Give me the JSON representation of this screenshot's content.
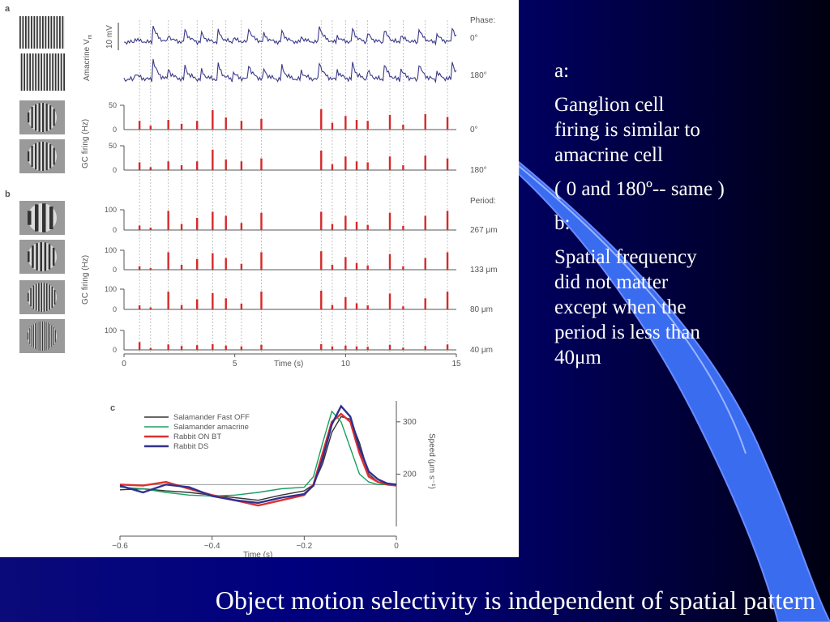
{
  "slide": {
    "title": "Object motion selectivity is independent of spatial pattern",
    "notes": [
      " a:",
      " Ganglion cell\nfiring is similar to\namacrine cell",
      "( 0 and 180º-- same )",
      " b:",
      "Spatial frequency\ndid not matter\nexcept when the\nperiod is less than\n40μm"
    ],
    "colors": {
      "background": "#00007e",
      "accent_wave": "#3a6cf0",
      "text": "#ffffff"
    }
  },
  "figure": {
    "panel_a_label": "a",
    "panel_b_label": "b",
    "panel_c_label": "c",
    "amacrine_ylabel": "Amacrine V",
    "amacrine_ylabel_sub": "m",
    "scale_bar": "10 mV",
    "gc_ylabel": "GC firing (Hz)",
    "phase_header": "Phase:",
    "period_header": "Period:",
    "time_label": "Time (s)",
    "time_ticks": [
      "0",
      "5",
      "10",
      "15"
    ],
    "panel_c_xlabel": "Time (s)",
    "panel_c_ylabel": "Speed (μm s⁻¹)",
    "row_icons": [
      "grating-0deg-icon",
      "grating-180deg-icon",
      "aperture-grating-icon",
      "aperture-grating-icon",
      "aperture-grating-267-icon",
      "aperture-grating-133-icon",
      "aperture-grating-80-icon",
      "aperture-grating-40-icon"
    ]
  },
  "chart_data": [
    {
      "type": "line",
      "panel": "a",
      "ylabel": "Amacrine V m",
      "scale_bar": "10 mV",
      "x": [
        0.5,
        1.3,
        2.0,
        2.7,
        3.5,
        4.2,
        4.9,
        5.6,
        6.3,
        7.1,
        8.0,
        8.8,
        9.6,
        10.3,
        11.0,
        11.7,
        12.5,
        13.3,
        14.1,
        14.8
      ],
      "xlabel": "Time (s)",
      "xlim": [
        0,
        15
      ],
      "series": [
        {
          "name": "0°",
          "values": [
            0.2,
            1.0,
            0.4,
            0.9,
            0.5,
            0.8,
            0.3,
            0.9,
            0.5,
            0.7,
            0.3,
            1.0,
            0.4,
            0.8,
            0.5,
            0.9,
            0.4,
            0.8,
            0.5,
            0.9
          ]
        },
        {
          "name": "180°",
          "values": [
            0.3,
            1.0,
            0.5,
            0.8,
            0.4,
            0.9,
            0.4,
            0.8,
            0.5,
            0.7,
            0.4,
            0.9,
            0.5,
            0.8,
            0.4,
            0.9,
            0.5,
            0.8,
            0.4,
            0.9
          ]
        }
      ]
    },
    {
      "type": "bar",
      "panel": "a",
      "ylabel": "GC firing (Hz)",
      "header": "Phase:",
      "xlabel": "Time (s)",
      "xlim": [
        0,
        15
      ],
      "ylim": [
        0,
        50
      ],
      "yticks": [
        0,
        50
      ],
      "x": [
        0.7,
        1.2,
        2.0,
        2.6,
        3.3,
        4.0,
        4.6,
        5.3,
        6.2,
        8.9,
        9.4,
        10.0,
        10.5,
        11.0,
        12.0,
        12.6,
        13.6,
        14.6
      ],
      "series": [
        {
          "name": "0°",
          "values": [
            18,
            8,
            20,
            12,
            18,
            40,
            25,
            18,
            22,
            42,
            14,
            28,
            20,
            18,
            30,
            10,
            32,
            26
          ]
        },
        {
          "name": "180°",
          "values": [
            16,
            6,
            18,
            10,
            18,
            42,
            22,
            18,
            24,
            40,
            12,
            28,
            18,
            16,
            28,
            10,
            30,
            24
          ]
        }
      ]
    },
    {
      "type": "bar",
      "panel": "b",
      "ylabel": "GC firing (Hz)",
      "header": "Period:",
      "xlabel": "Time (s)",
      "xlim": [
        0,
        15
      ],
      "ylim": [
        0,
        100
      ],
      "yticks": [
        0,
        100
      ],
      "x": [
        0.7,
        1.2,
        2.0,
        2.6,
        3.3,
        4.0,
        4.6,
        5.3,
        6.2,
        8.9,
        9.4,
        10.0,
        10.5,
        11.0,
        12.0,
        12.6,
        13.6,
        14.6
      ],
      "series": [
        {
          "name": "267 μm",
          "values": [
            22,
            12,
            95,
            30,
            60,
            90,
            70,
            35,
            85,
            90,
            30,
            70,
            40,
            25,
            85,
            20,
            70,
            95
          ]
        },
        {
          "name": "133 μm",
          "values": [
            18,
            8,
            90,
            25,
            55,
            85,
            60,
            30,
            90,
            95,
            25,
            65,
            35,
            22,
            80,
            18,
            60,
            90
          ]
        },
        {
          "name": "80 μm",
          "values": [
            20,
            10,
            88,
            22,
            50,
            80,
            55,
            28,
            88,
            92,
            22,
            60,
            30,
            20,
            78,
            15,
            55,
            88
          ]
        },
        {
          "name": "40 μm",
          "values": [
            40,
            10,
            28,
            20,
            24,
            30,
            22,
            18,
            26,
            30,
            18,
            22,
            18,
            16,
            26,
            12,
            20,
            28
          ]
        }
      ]
    },
    {
      "type": "line",
      "panel": "c",
      "xlabel": "Time (s)",
      "ylabel": "Speed (μm s⁻¹)",
      "xlim": [
        -0.6,
        0
      ],
      "xticks": [
        -0.6,
        -0.4,
        -0.2,
        0
      ],
      "ylim": [
        100,
        340
      ],
      "yticks": [
        200,
        300
      ],
      "x": [
        -0.6,
        -0.55,
        -0.5,
        -0.45,
        -0.4,
        -0.35,
        -0.3,
        -0.25,
        -0.2,
        -0.18,
        -0.16,
        -0.14,
        -0.12,
        -0.1,
        -0.08,
        -0.06,
        -0.04,
        -0.02,
        0
      ],
      "series": [
        {
          "name": "Salamander Fast OFF",
          "color": "#333333",
          "values": [
            170,
            172,
            168,
            165,
            160,
            155,
            150,
            160,
            168,
            180,
            220,
            280,
            310,
            305,
            260,
            200,
            185,
            182,
            180
          ]
        },
        {
          "name": "Salamander amacrine",
          "color": "#1aa060",
          "values": [
            175,
            172,
            165,
            160,
            158,
            160,
            165,
            172,
            175,
            195,
            260,
            320,
            300,
            250,
            200,
            185,
            180,
            180,
            180
          ]
        },
        {
          "name": "Rabbit ON BT",
          "color": "#e03030",
          "values": [
            180,
            178,
            185,
            172,
            160,
            150,
            140,
            150,
            160,
            180,
            240,
            300,
            315,
            300,
            240,
            195,
            185,
            180,
            178
          ]
        },
        {
          "name": "Rabbit DS",
          "color": "#303090",
          "values": [
            178,
            165,
            180,
            175,
            158,
            150,
            145,
            155,
            162,
            178,
            230,
            295,
            330,
            310,
            250,
            205,
            190,
            182,
            180
          ]
        }
      ]
    }
  ]
}
